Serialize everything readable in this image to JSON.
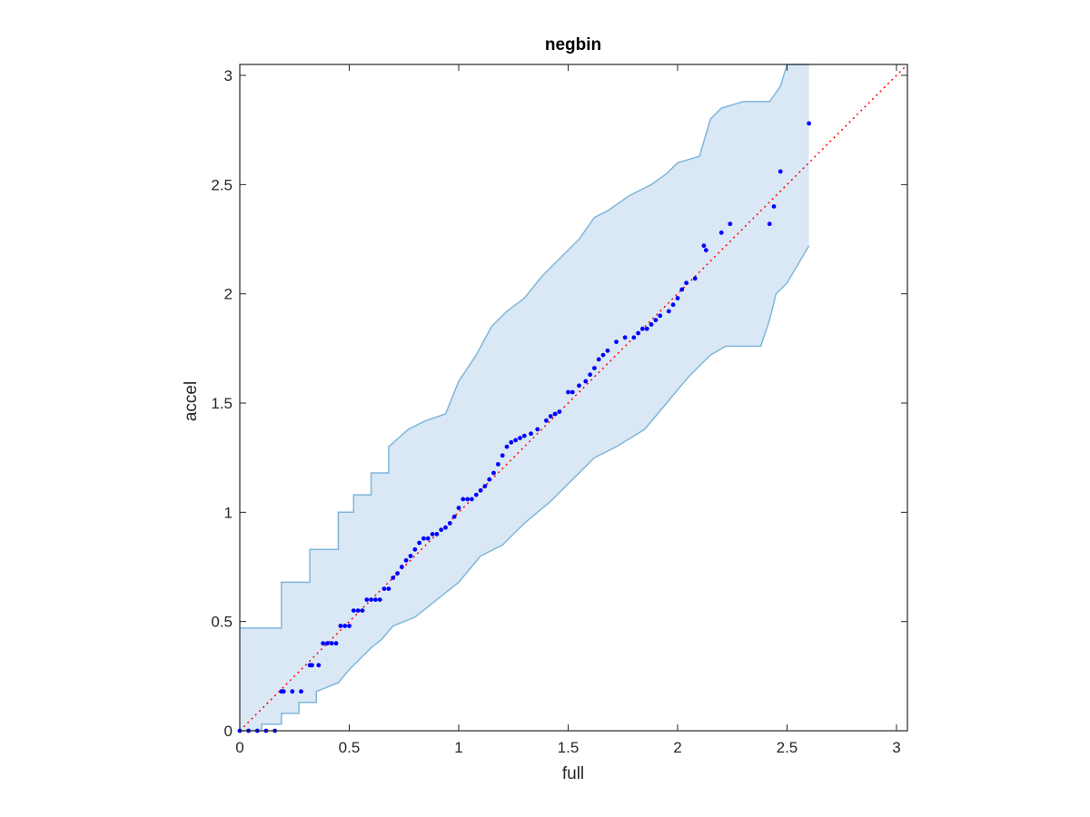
{
  "chart_data": {
    "type": "scatter",
    "title": "negbin",
    "xlabel": "full",
    "ylabel": "accel",
    "xlim": [
      0,
      3.05
    ],
    "ylim": [
      0,
      3.05
    ],
    "grid": false,
    "legend": "none",
    "xticks": [
      0,
      0.5,
      1,
      1.5,
      2,
      2.5,
      3
    ],
    "xtick_labels": [
      "0",
      "0.5",
      "1",
      "1.5",
      "2",
      "2.5",
      "3"
    ],
    "yticks": [
      0,
      0.5,
      1,
      1.5,
      2,
      2.5,
      3
    ],
    "ytick_labels": [
      "0",
      "0.5",
      "1",
      "1.5",
      "2",
      "2.5",
      "3"
    ],
    "colors": {
      "points": "#0000ff",
      "reference_line": "#ff0000",
      "band_fill": "#d9e8f4",
      "band_edge": "#7fb6dc",
      "axes": "#262626"
    },
    "reference_line": {
      "x": [
        0,
        3.05
      ],
      "y": [
        0,
        3.05
      ]
    },
    "band_upper": {
      "x": [
        0,
        0.19,
        0.19,
        0.32,
        0.32,
        0.45,
        0.45,
        0.52,
        0.52,
        0.6,
        0.6,
        0.68,
        0.68,
        0.77,
        0.85,
        0.94,
        1.0,
        1.08,
        1.15,
        1.22,
        1.3,
        1.38,
        1.45,
        1.55,
        1.62,
        1.68,
        1.78,
        1.88,
        1.95,
        2.0,
        2.1,
        2.15,
        2.2,
        2.3,
        2.38,
        2.42,
        2.47,
        2.5,
        2.6
      ],
      "y": [
        0.47,
        0.47,
        0.68,
        0.68,
        0.83,
        0.83,
        1.0,
        1.0,
        1.08,
        1.08,
        1.18,
        1.18,
        1.3,
        1.38,
        1.42,
        1.45,
        1.6,
        1.72,
        1.85,
        1.92,
        1.98,
        2.08,
        2.15,
        2.25,
        2.35,
        2.38,
        2.45,
        2.5,
        2.55,
        2.6,
        2.63,
        2.8,
        2.85,
        2.88,
        2.88,
        2.88,
        2.95,
        3.05,
        3.05
      ]
    },
    "band_lower": {
      "x": [
        0,
        0.1,
        0.1,
        0.19,
        0.19,
        0.27,
        0.27,
        0.35,
        0.35,
        0.45,
        0.5,
        0.55,
        0.6,
        0.65,
        0.7,
        0.8,
        0.9,
        1.0,
        1.1,
        1.2,
        1.3,
        1.42,
        1.52,
        1.62,
        1.72,
        1.85,
        1.95,
        2.05,
        2.15,
        2.22,
        2.3,
        2.38,
        2.42,
        2.45,
        2.5,
        2.6
      ],
      "y": [
        0,
        0,
        0.03,
        0.03,
        0.08,
        0.08,
        0.13,
        0.13,
        0.18,
        0.22,
        0.28,
        0.33,
        0.38,
        0.42,
        0.48,
        0.52,
        0.6,
        0.68,
        0.8,
        0.85,
        0.95,
        1.05,
        1.15,
        1.25,
        1.3,
        1.38,
        1.5,
        1.62,
        1.72,
        1.76,
        1.76,
        1.76,
        1.88,
        2.0,
        2.05,
        2.22
      ]
    },
    "x": [
      0.0,
      0.04,
      0.08,
      0.12,
      0.16,
      0.19,
      0.2,
      0.24,
      0.28,
      0.32,
      0.33,
      0.36,
      0.38,
      0.4,
      0.42,
      0.44,
      0.46,
      0.48,
      0.5,
      0.52,
      0.54,
      0.56,
      0.58,
      0.6,
      0.62,
      0.64,
      0.66,
      0.68,
      0.7,
      0.72,
      0.74,
      0.76,
      0.78,
      0.8,
      0.82,
      0.84,
      0.86,
      0.88,
      0.9,
      0.92,
      0.94,
      0.96,
      0.98,
      1.0,
      1.02,
      1.04,
      1.06,
      1.08,
      1.1,
      1.12,
      1.14,
      1.16,
      1.18,
      1.2,
      1.22,
      1.24,
      1.26,
      1.28,
      1.3,
      1.33,
      1.36,
      1.4,
      1.42,
      1.44,
      1.46,
      1.5,
      1.52,
      1.55,
      1.58,
      1.6,
      1.62,
      1.64,
      1.66,
      1.68,
      1.72,
      1.76,
      1.8,
      1.82,
      1.84,
      1.86,
      1.88,
      1.9,
      1.92,
      1.96,
      1.98,
      2.0,
      2.02,
      2.04,
      2.08,
      2.12,
      2.13,
      2.2,
      2.24,
      2.42,
      2.44,
      2.47,
      2.6
    ],
    "y": [
      0.0,
      0.0,
      0.0,
      0.0,
      0.0,
      0.18,
      0.18,
      0.18,
      0.18,
      0.3,
      0.3,
      0.3,
      0.4,
      0.4,
      0.4,
      0.4,
      0.48,
      0.48,
      0.48,
      0.55,
      0.55,
      0.55,
      0.6,
      0.6,
      0.6,
      0.6,
      0.65,
      0.65,
      0.7,
      0.72,
      0.75,
      0.78,
      0.8,
      0.83,
      0.86,
      0.88,
      0.88,
      0.9,
      0.9,
      0.92,
      0.93,
      0.95,
      0.98,
      1.02,
      1.06,
      1.06,
      1.06,
      1.08,
      1.1,
      1.12,
      1.15,
      1.18,
      1.22,
      1.26,
      1.3,
      1.32,
      1.33,
      1.34,
      1.35,
      1.36,
      1.38,
      1.42,
      1.44,
      1.45,
      1.46,
      1.55,
      1.55,
      1.58,
      1.6,
      1.63,
      1.66,
      1.7,
      1.72,
      1.74,
      1.78,
      1.8,
      1.8,
      1.82,
      1.84,
      1.84,
      1.86,
      1.88,
      1.9,
      1.92,
      1.95,
      1.98,
      2.02,
      2.05,
      2.07,
      2.22,
      2.2,
      2.28,
      2.32,
      2.32,
      2.4,
      2.56,
      2.78
    ]
  }
}
